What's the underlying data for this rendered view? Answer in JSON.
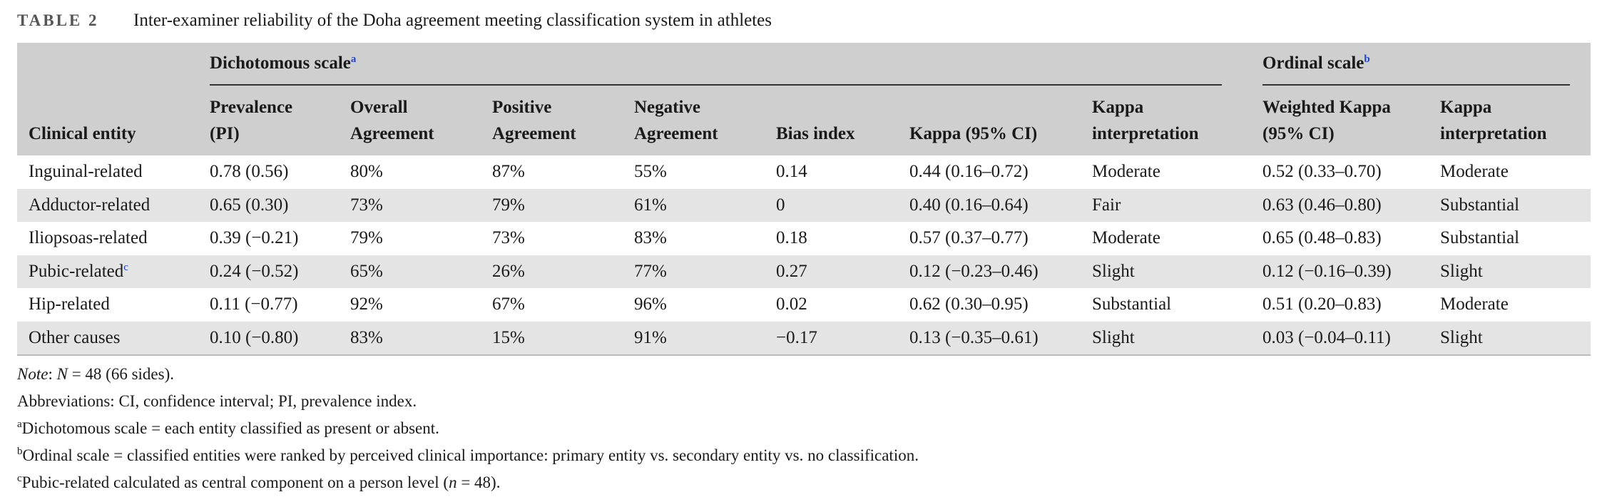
{
  "caption": {
    "label": "TABLE 2",
    "text": "Inter-examiner reliability of the Doha agreement meeting classification system in athletes"
  },
  "table": {
    "groups": [
      {
        "text": "Dichotomous scale",
        "sup": "a"
      },
      {
        "text": "Ordinal scale",
        "sup": "b"
      }
    ],
    "columns": [
      [
        "Clinical entity"
      ],
      [
        "Prevalence",
        "(PI)"
      ],
      [
        "Overall",
        "Agreement"
      ],
      [
        "Positive",
        "Agreement"
      ],
      [
        "Negative",
        "Agreement"
      ],
      [
        "Bias index"
      ],
      [
        "Kappa (95% CI)"
      ],
      [
        "Kappa",
        "interpretation"
      ],
      [
        "Weighted Kappa",
        "(95% CI)"
      ],
      [
        "Kappa",
        "interpretation"
      ]
    ],
    "rows": [
      [
        "Inguinal-related",
        "0.78 (0.56)",
        "80%",
        "87%",
        "55%",
        "0.14",
        "0.44 (0.16–0.72)",
        "Moderate",
        "0.52 (0.33–0.70)",
        "Moderate"
      ],
      [
        "Adductor-related",
        "0.65 (0.30)",
        "73%",
        "79%",
        "61%",
        "0",
        "0.40 (0.16–0.64)",
        "Fair",
        "0.63 (0.46–0.80)",
        "Substantial"
      ],
      [
        "Iliopsoas-related",
        "0.39 (−0.21)",
        "79%",
        "73%",
        "83%",
        "0.18",
        "0.57 (0.37–0.77)",
        "Moderate",
        "0.65 (0.48–0.83)",
        "Substantial"
      ],
      [
        "Pubic-related",
        "0.24 (−0.52)",
        "65%",
        "26%",
        "77%",
        "0.27",
        "0.12 (−0.23–0.46)",
        "Slight",
        "0.12 (−0.16–0.39)",
        "Slight"
      ],
      [
        "Hip-related",
        "0.11 (−0.77)",
        "92%",
        "67%",
        "96%",
        "0.02",
        "0.62 (0.30–0.95)",
        "Substantial",
        "0.51 (0.20–0.83)",
        "Moderate"
      ],
      [
        "Other causes",
        "0.10 (−0.80)",
        "83%",
        "15%",
        "91%",
        "−0.17",
        "0.13 (−0.35–0.61)",
        "Slight",
        "0.03 (−0.04–0.11)",
        "Slight"
      ]
    ],
    "row_sup": {
      "row": 3,
      "sup": "c"
    }
  },
  "notes": [
    [
      "Note",
      ": ",
      "N",
      " = 48 (66 sides)."
    ],
    [
      "Abbreviations: CI, confidence interval; PI, prevalence index."
    ],
    [
      "a",
      "Dichotomous scale = each entity classified as present or absent."
    ],
    [
      "b",
      "Ordinal scale = classified entities were ranked by perceived clinical importance: primary entity vs. secondary entity vs. no classification."
    ],
    [
      "c",
      "Pubic-related calculated as central component on a person level (",
      "n",
      " = 48)."
    ]
  ]
}
